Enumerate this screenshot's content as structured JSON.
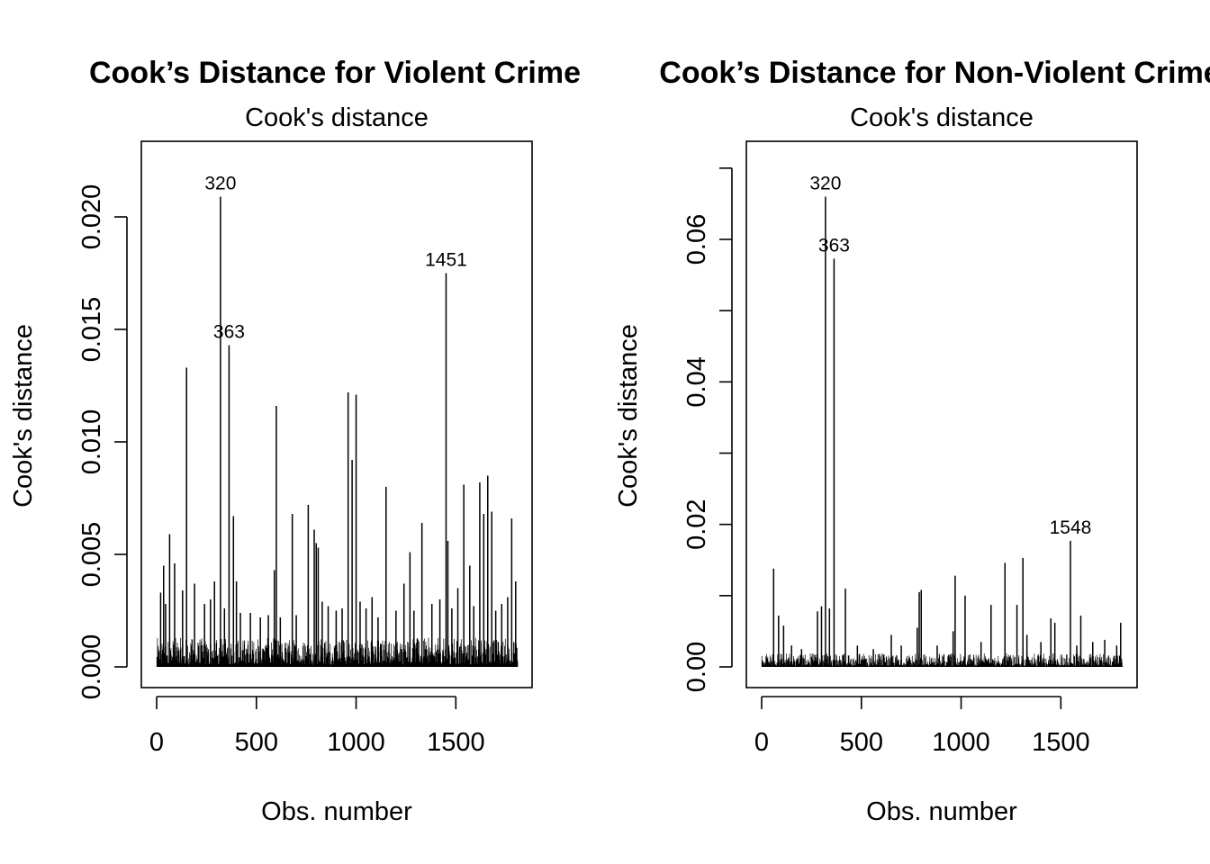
{
  "chart_data": [
    {
      "type": "bar",
      "title": "Cook’s Distance for Violent Crime",
      "subtitle": "Cook's distance",
      "xlabel": "Obs. number",
      "ylabel": "Cook's distance",
      "xlim": [
        0,
        1810
      ],
      "ylim": [
        0,
        0.022
      ],
      "xticks": [
        0,
        500,
        1000,
        1500
      ],
      "xtick_labels": [
        "0",
        "500",
        "1000",
        "1500"
      ],
      "yticks": [
        0,
        0.005,
        0.01,
        0.015,
        0.02
      ],
      "ytick_labels": [
        "0.000",
        "0.005",
        "0.010",
        "0.015",
        "0.020"
      ],
      "grid": false,
      "n_obs": 1810,
      "x": [
        20,
        35,
        45,
        65,
        90,
        130,
        150,
        190,
        240,
        270,
        290,
        320,
        340,
        363,
        385,
        400,
        420,
        470,
        520,
        560,
        590,
        600,
        620,
        680,
        700,
        760,
        790,
        800,
        810,
        830,
        860,
        900,
        930,
        960,
        980,
        1000,
        1020,
        1050,
        1080,
        1110,
        1150,
        1200,
        1240,
        1270,
        1290,
        1330,
        1380,
        1420,
        1451,
        1460,
        1480,
        1510,
        1540,
        1570,
        1590,
        1620,
        1640,
        1660,
        1680,
        1700,
        1730,
        1760,
        1780,
        1800
      ],
      "values": [
        0.0033,
        0.0045,
        0.0028,
        0.0059,
        0.0046,
        0.0034,
        0.0133,
        0.0037,
        0.0028,
        0.003,
        0.0038,
        0.0209,
        0.0026,
        0.0143,
        0.0067,
        0.0038,
        0.0024,
        0.0024,
        0.0022,
        0.0023,
        0.0043,
        0.0116,
        0.0022,
        0.0068,
        0.0023,
        0.0072,
        0.0061,
        0.0055,
        0.0053,
        0.0029,
        0.0027,
        0.0025,
        0.0026,
        0.0122,
        0.0092,
        0.0121,
        0.0029,
        0.0026,
        0.0031,
        0.0022,
        0.008,
        0.0025,
        0.0037,
        0.0051,
        0.0025,
        0.0064,
        0.0028,
        0.003,
        0.0175,
        0.0056,
        0.0026,
        0.0035,
        0.0081,
        0.0045,
        0.0027,
        0.0082,
        0.0068,
        0.0085,
        0.0069,
        0.0025,
        0.0028,
        0.0031,
        0.0066,
        0.0038
      ],
      "labeled_points": [
        {
          "x": 320,
          "value": 0.0209,
          "label": "320"
        },
        {
          "x": 363,
          "value": 0.0143,
          "label": "363"
        },
        {
          "x": 1451,
          "value": 0.0175,
          "label": "1451"
        }
      ]
    },
    {
      "type": "bar",
      "title": "Cook’s Distance for Non-Violent Crime",
      "subtitle": "Cook's distance",
      "xlabel": "Obs. number",
      "ylabel": "Cook's distance",
      "xlim": [
        0,
        1810
      ],
      "ylim": [
        0,
        0.07
      ],
      "xticks": [
        0,
        500,
        1000,
        1500
      ],
      "xtick_labels": [
        "0",
        "500",
        "1000",
        "1500"
      ],
      "yticks": [
        0,
        0.01,
        0.02,
        0.03,
        0.04,
        0.05,
        0.06,
        0.07
      ],
      "ytick_labels": [
        "0.00",
        "",
        "0.02",
        "",
        "0.04",
        "",
        "0.06",
        ""
      ],
      "grid": false,
      "n_obs": 1810,
      "x": [
        60,
        85,
        110,
        150,
        200,
        280,
        300,
        320,
        340,
        363,
        420,
        480,
        560,
        650,
        700,
        780,
        790,
        800,
        880,
        960,
        970,
        1020,
        1100,
        1150,
        1220,
        1280,
        1310,
        1330,
        1400,
        1450,
        1470,
        1548,
        1580,
        1600,
        1660,
        1720,
        1780,
        1800
      ],
      "values": [
        0.0138,
        0.0072,
        0.0058,
        0.003,
        0.0025,
        0.0078,
        0.0085,
        0.066,
        0.0082,
        0.0573,
        0.011,
        0.003,
        0.0025,
        0.0045,
        0.003,
        0.0055,
        0.0105,
        0.0108,
        0.003,
        0.005,
        0.0128,
        0.01,
        0.0035,
        0.0087,
        0.0146,
        0.0087,
        0.0153,
        0.0045,
        0.0035,
        0.0068,
        0.0062,
        0.0177,
        0.003,
        0.0072,
        0.0035,
        0.0038,
        0.003,
        0.0062
      ],
      "labeled_points": [
        {
          "x": 320,
          "value": 0.066,
          "label": "320"
        },
        {
          "x": 363,
          "value": 0.0573,
          "label": "363"
        },
        {
          "x": 1548,
          "value": 0.0177,
          "label": "1548"
        }
      ]
    }
  ]
}
